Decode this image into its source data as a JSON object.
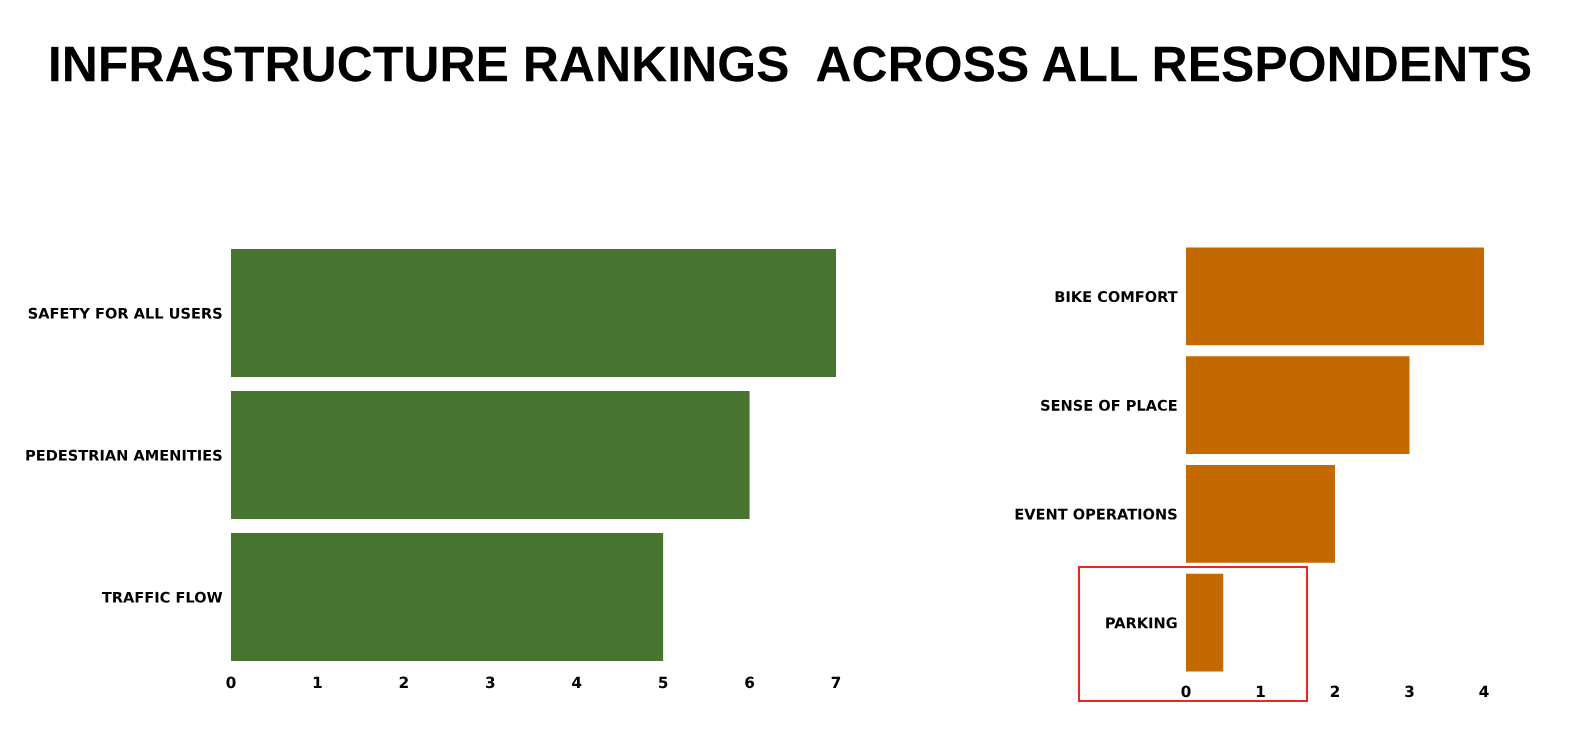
{
  "chart_data": [
    {
      "type": "bar",
      "orientation": "horizontal",
      "title": "INFRASTRUCTURE RANKINGS  ACROSS ALL RESPONDENTS",
      "categories": [
        "SAFETY FOR ALL USERS",
        "PEDESTRIAN AMENITIES",
        "TRAFFIC FLOW"
      ],
      "values": [
        7,
        6,
        5
      ],
      "color": "#477530",
      "xlim": [
        0,
        7.05
      ],
      "xticks": [
        0,
        1,
        2,
        3,
        4,
        5,
        6,
        7
      ],
      "grid": false,
      "legend": false
    },
    {
      "type": "bar",
      "orientation": "horizontal",
      "categories": [
        "BIKE COMFORT",
        "SENSE OF PLACE",
        "EVENT OPERATIONS",
        "PARKING"
      ],
      "values": [
        4,
        3,
        2,
        0.5
      ],
      "color": "#c46800",
      "xlim": [
        0,
        4.05
      ],
      "xticks": [
        0,
        1,
        2,
        3,
        4
      ],
      "grid": false,
      "legend": false
    }
  ]
}
